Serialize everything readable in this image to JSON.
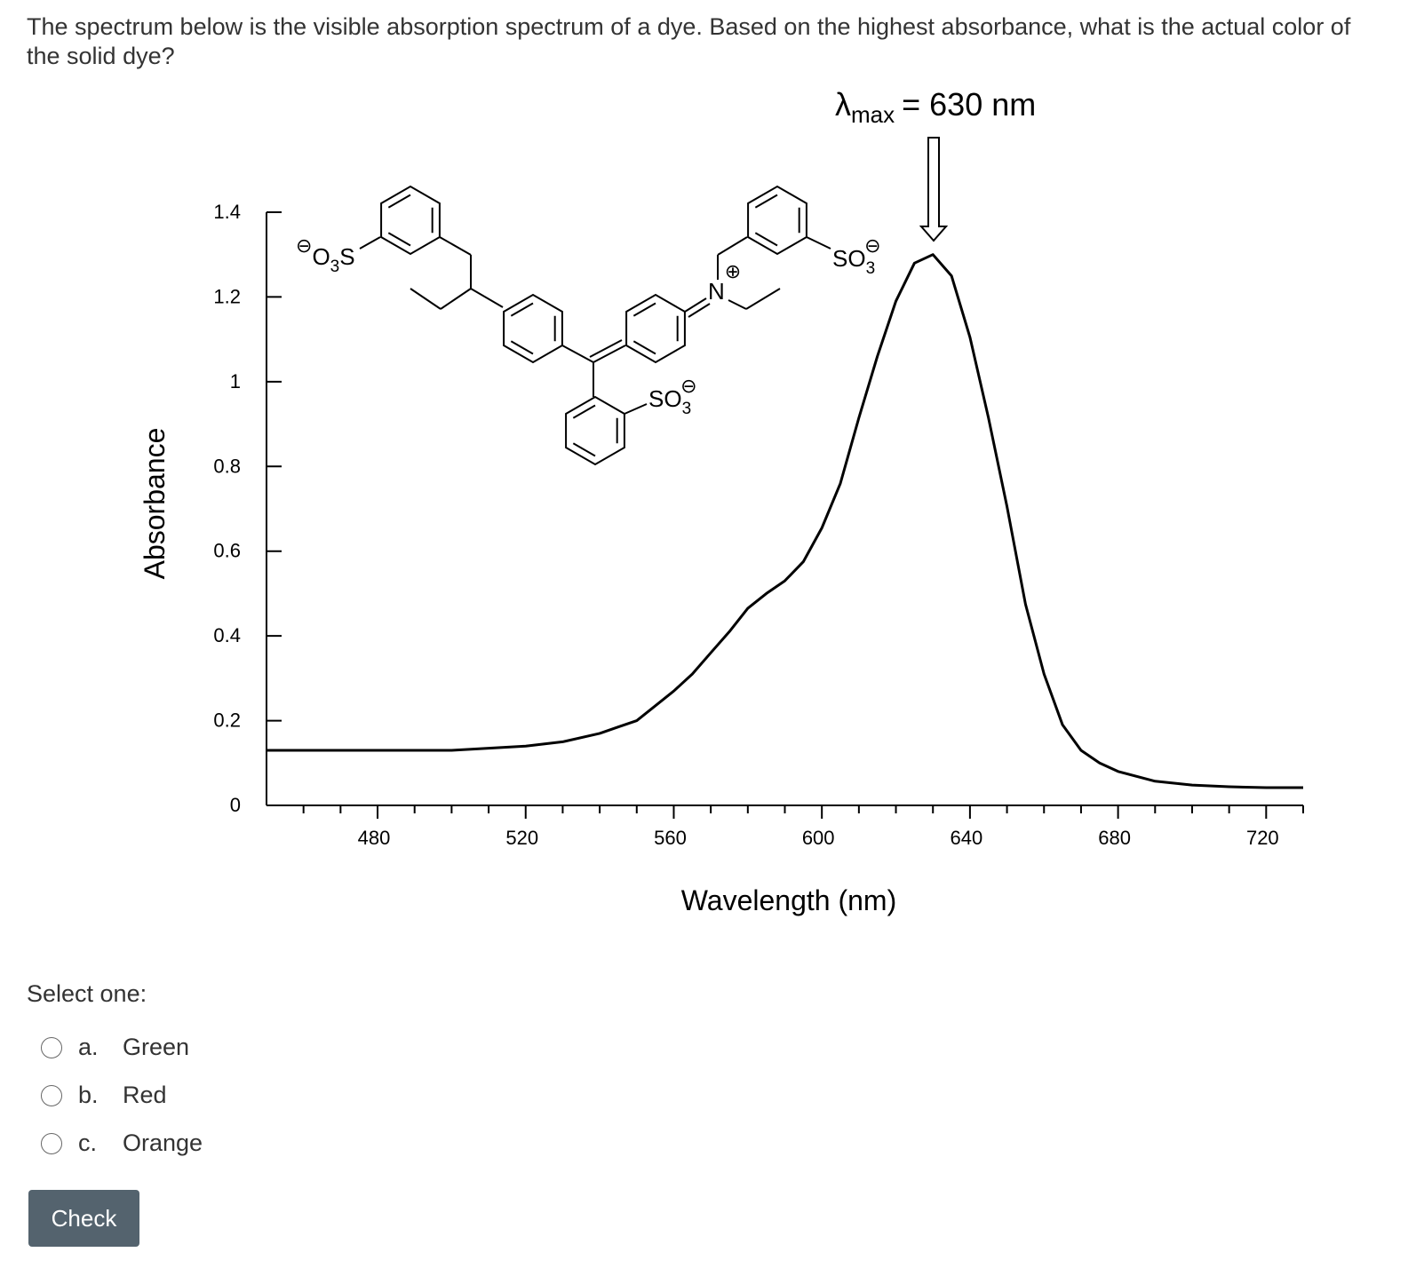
{
  "question": "The spectrum below is the visible absorption spectrum of a dye. Based on the highest absorbance, what is the actual color of the solid dye?",
  "chart_data": {
    "type": "line",
    "x_label": "Wavelength (nm)",
    "y_label": "Absorbance",
    "annotation": {
      "symbol": "λ",
      "subscript": "max",
      "text": "= 630 nm"
    },
    "structure": {
      "groups": [
        {
          "charge": "⊖",
          "pre": "O",
          "sub": "3",
          "post": "S"
        },
        {
          "pre": "SO",
          "sub": "3",
          "charge": "⊖"
        },
        {
          "pre": "SO",
          "sub": "3",
          "charge": "⊖"
        },
        {
          "pre": "N",
          "charge": "⊕"
        }
      ]
    },
    "x": [
      450,
      460,
      470,
      480,
      490,
      500,
      510,
      520,
      530,
      540,
      545,
      550,
      555,
      560,
      565,
      570,
      575,
      580,
      585,
      590,
      595,
      600,
      605,
      610,
      615,
      620,
      625,
      630,
      635,
      640,
      645,
      650,
      655,
      660,
      665,
      670,
      675,
      680,
      690,
      700,
      710,
      720,
      730
    ],
    "values": [
      0.13,
      0.13,
      0.13,
      0.13,
      0.13,
      0.13,
      0.135,
      0.14,
      0.15,
      0.17,
      0.185,
      0.2,
      0.235,
      0.27,
      0.31,
      0.36,
      0.41,
      0.465,
      0.5,
      0.53,
      0.575,
      0.655,
      0.76,
      0.915,
      1.06,
      1.19,
      1.28,
      1.3,
      1.25,
      1.105,
      0.915,
      0.705,
      0.475,
      0.31,
      0.19,
      0.13,
      0.1,
      0.08,
      0.057,
      0.048,
      0.044,
      0.042,
      0.042
    ],
    "color": "#000000",
    "xlim": [
      450,
      730
    ],
    "xticks": [
      480,
      520,
      560,
      600,
      640,
      680,
      720
    ],
    "xminorticks": [
      460,
      470,
      490,
      500,
      510,
      530,
      540,
      550,
      570,
      580,
      590,
      610,
      620,
      630,
      650,
      660,
      670,
      690,
      700,
      710,
      730
    ],
    "ylim": [
      0,
      1.4
    ],
    "yticks": [
      0,
      0.2,
      0.4,
      0.6,
      0.8,
      1,
      1.2,
      1.4
    ]
  },
  "prompt": "Select one:",
  "options": [
    {
      "letter": "a.",
      "text": "Green"
    },
    {
      "letter": "b.",
      "text": "Red"
    },
    {
      "letter": "c.",
      "text": "Orange"
    }
  ],
  "button": "Check"
}
